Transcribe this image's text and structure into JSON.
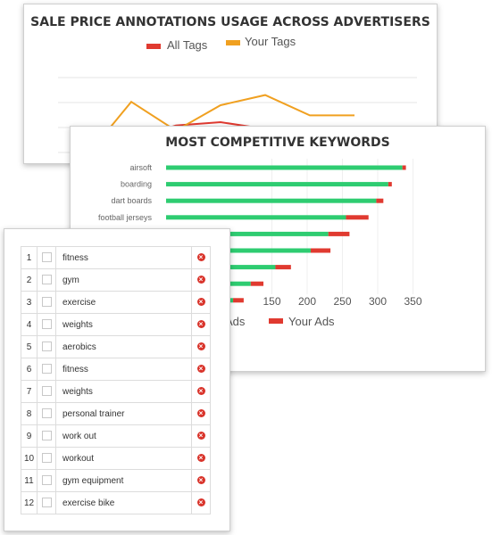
{
  "chart_data": [
    {
      "type": "line",
      "title": "SALE PRICE ANNOTATIONS USAGE ACROSS ADVERTISERS",
      "series": [
        {
          "name": "All Tags",
          "color": "#e03a30",
          "values": [
            0,
            10,
            18,
            20,
            16,
            4
          ]
        },
        {
          "name": "Your Tags",
          "color": "#f0a020",
          "values": [
            0,
            32,
            15,
            30,
            36,
            24,
            24
          ]
        }
      ],
      "ylim": [
        0,
        60
      ],
      "grid": true,
      "legend": "top"
    },
    {
      "type": "bar",
      "orientation": "horizontal",
      "stacked": true,
      "title": "MOST COMPETITIVE KEYWORDS",
      "categories": [
        "airsoft",
        "boarding",
        "dart boards",
        "football jerseys",
        "",
        "",
        "",
        "",
        ""
      ],
      "series": [
        {
          "name": "All Ads",
          "color": "#2ecc71",
          "values": [
            335,
            315,
            298,
            255,
            230,
            205,
            155,
            120,
            95
          ]
        },
        {
          "name": "Your Ads",
          "color": "#e03a30",
          "values": [
            5,
            5,
            10,
            32,
            30,
            28,
            22,
            18,
            15
          ]
        }
      ],
      "xticks": [
        "150",
        "200",
        "250",
        "300",
        "350"
      ],
      "xlim": [
        0,
        350
      ],
      "grid": true,
      "legend": "bottom"
    }
  ],
  "legend1": {
    "all_tags": "All Tags",
    "your_tags": "Your Tags"
  },
  "legend2": {
    "all_ads_partial": "Ads",
    "your_ads": "Your Ads"
  },
  "keywords_table": {
    "rows": [
      {
        "num": "1",
        "keyword": "fitness"
      },
      {
        "num": "2",
        "keyword": "gym"
      },
      {
        "num": "3",
        "keyword": "exercise"
      },
      {
        "num": "4",
        "keyword": "weights"
      },
      {
        "num": "5",
        "keyword": "aerobics"
      },
      {
        "num": "6",
        "keyword": "fitness"
      },
      {
        "num": "7",
        "keyword": "weights"
      },
      {
        "num": "8",
        "keyword": "personal trainer"
      },
      {
        "num": "9",
        "keyword": "work out"
      },
      {
        "num": "10",
        "keyword": "workout"
      },
      {
        "num": "11",
        "keyword": "gym equipment"
      },
      {
        "num": "12",
        "keyword": "exercise bike"
      }
    ],
    "delete_icon": "close-circle-icon",
    "checkbox_icon": "checkbox-icon"
  }
}
